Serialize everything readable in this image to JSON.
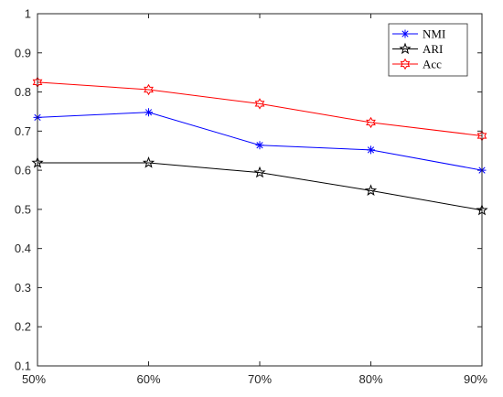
{
  "chart_data": {
    "type": "line",
    "title": "",
    "xlabel": "",
    "ylabel": "",
    "categories": [
      "50%",
      "60%",
      "70%",
      "80%",
      "90%"
    ],
    "ylim": [
      0.1,
      1
    ],
    "yticks": [
      "0.1",
      "0.2",
      "0.3",
      "0.4",
      "0.5",
      "0.6",
      "0.7",
      "0.8",
      "0.9",
      "1"
    ],
    "grid": false,
    "legend_position": "top-right",
    "series": [
      {
        "name": "NMI",
        "values": [
          0.735,
          0.748,
          0.664,
          0.652,
          0.6
        ],
        "color": "#0000ff",
        "marker": "asterisk"
      },
      {
        "name": "ARI",
        "values": [
          0.619,
          0.619,
          0.594,
          0.548,
          0.498
        ],
        "color": "#000000",
        "marker": "pentagram"
      },
      {
        "name": "Acc",
        "values": [
          0.825,
          0.806,
          0.77,
          0.722,
          0.688
        ],
        "color": "#ff0000",
        "marker": "hexagram"
      }
    ]
  }
}
